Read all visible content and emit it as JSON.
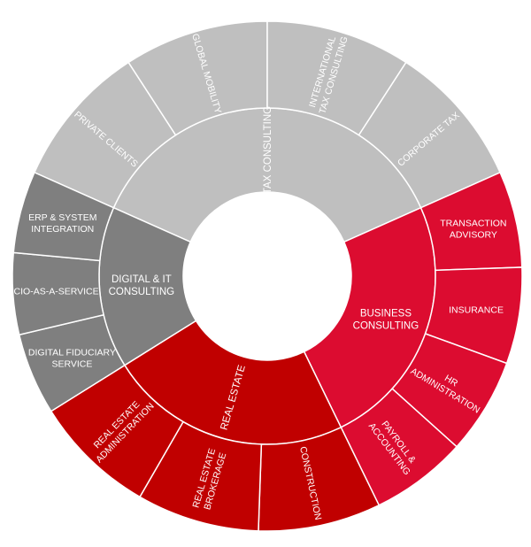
{
  "chart_data": {
    "type": "sunburst",
    "colors": {
      "tax": "#bfbfbf",
      "digital": "#7f7f7f",
      "real_estate": "#c00000",
      "business": "#dc0c30",
      "separator": "#ffffff",
      "label": "#ffffff"
    },
    "segments": [
      {
        "name": "TAX CONSULTING",
        "color_key": "tax",
        "children": [
          {
            "name": "PRIVATE CLIENTS"
          },
          {
            "name": "GLOBAL MOBILITY"
          },
          {
            "name": "INTERNATIONAL TAX CONSULTING"
          },
          {
            "name": "CORPORATE TAX"
          }
        ]
      },
      {
        "name": "BUSINESS CONSULTING",
        "color_key": "business",
        "children": [
          {
            "name": "TRANSACTION ADVISORY"
          },
          {
            "name": "INSURANCE"
          },
          {
            "name": "HR ADMINISTRATION"
          },
          {
            "name": "PAYROLL & ACCOUNTING"
          }
        ]
      },
      {
        "name": "REAL ESTATE",
        "color_key": "real_estate",
        "children": [
          {
            "name": "CONSTRUCTION"
          },
          {
            "name": "REAL ESTATE BROKERAGE"
          },
          {
            "name": "REAL ESTATE ADMINISTRATION"
          }
        ]
      },
      {
        "name": "DIGITAL & IT CONSULTING",
        "color_key": "digital",
        "children": [
          {
            "name": "DIGITAL FIDUCIARY SERVICE"
          },
          {
            "name": "CIO-AS-A-SERVICE"
          },
          {
            "name": "ERP & SYSTEM INTEGRATION"
          }
        ]
      }
    ]
  }
}
